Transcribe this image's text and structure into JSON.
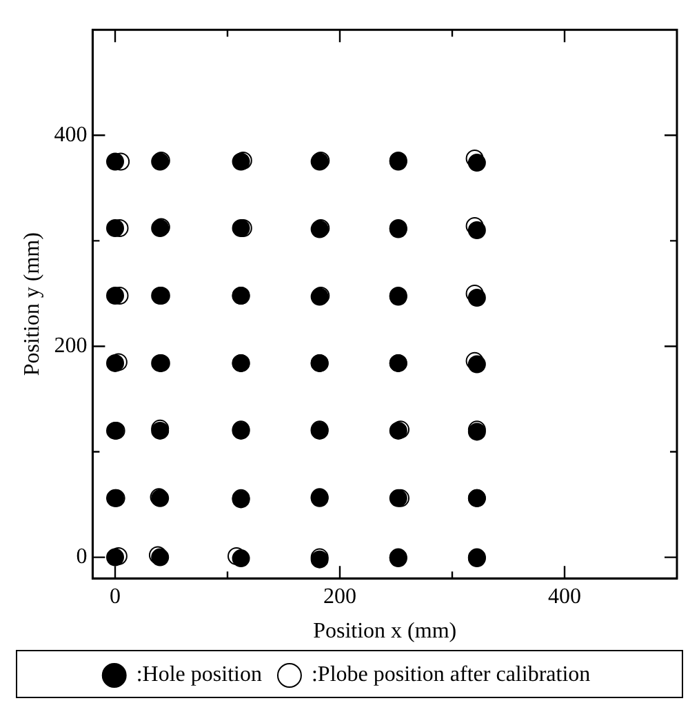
{
  "chart_data": {
    "type": "scatter",
    "xlabel": "Position x (mm)",
    "ylabel": "Position y (mm)",
    "xlim": [
      -20,
      500
    ],
    "ylim": [
      -20,
      500
    ],
    "xticks": [
      0,
      {
        "value": 100,
        "label": null
      },
      200,
      {
        "value": 300,
        "label": null
      },
      400
    ],
    "yticks": [
      0,
      {
        "value": 100,
        "label": null
      },
      200,
      {
        "value": 300,
        "label": null
      },
      400
    ],
    "grid": false,
    "legend": "bottom",
    "marker": "circle",
    "series": [
      {
        "name": ":Hole position",
        "color": "#000000",
        "x": [
          0,
          40,
          112,
          182,
          252,
          322,
          0,
          40,
          112,
          182,
          252,
          322,
          0,
          40,
          112,
          182,
          252,
          322,
          0,
          40,
          112,
          182,
          252,
          322,
          0,
          40,
          112,
          182,
          252,
          322,
          0,
          40,
          112,
          182,
          252,
          322,
          0,
          40,
          112,
          182,
          252,
          322
        ],
        "values": [
          375,
          375,
          375,
          375,
          375,
          374,
          312,
          312,
          312,
          311,
          311,
          310,
          248,
          248,
          248,
          247,
          247,
          246,
          184,
          184,
          184,
          184,
          184,
          183,
          120,
          120,
          120,
          120,
          120,
          119,
          56,
          56,
          55,
          56,
          56,
          56,
          0,
          0,
          -1,
          -2,
          -1,
          -1
        ]
      },
      {
        "name": ":Plobe position after calibration",
        "type": "scatter",
        "color": "#000000",
        "x": [
          5,
          41,
          114,
          183,
          252,
          320,
          4,
          41,
          114,
          183,
          252,
          320,
          4,
          41,
          112,
          183,
          252,
          320,
          3,
          41,
          112,
          182,
          252,
          320,
          1,
          40,
          112,
          182,
          254,
          322,
          1,
          39,
          112,
          182,
          254,
          322,
          3,
          38,
          108,
          182,
          252,
          322
        ],
        "values": [
          375,
          376,
          376,
          376,
          376,
          378,
          312,
          313,
          312,
          312,
          312,
          314,
          248,
          248,
          248,
          248,
          248,
          250,
          185,
          184,
          184,
          184,
          184,
          186,
          120,
          122,
          121,
          121,
          121,
          121,
          56,
          57,
          56,
          57,
          56,
          56,
          1,
          2,
          1,
          0,
          0,
          0
        ]
      }
    ]
  }
}
